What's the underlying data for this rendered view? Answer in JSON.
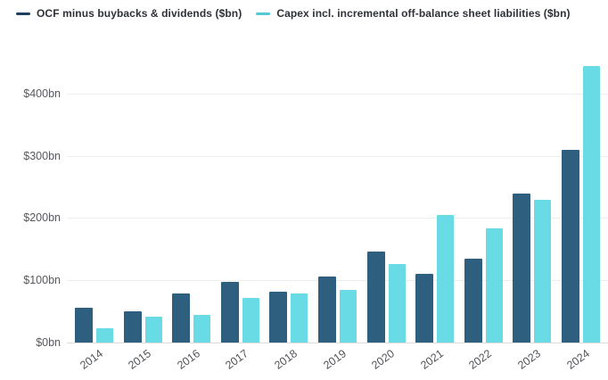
{
  "chart_data": {
    "type": "bar",
    "title": "",
    "xlabel": "",
    "ylabel": "",
    "grid": true,
    "legend_position": "top-left",
    "ylim": [
      0,
      450
    ],
    "categories": [
      "2014",
      "2015",
      "2016",
      "2017",
      "2018",
      "2019",
      "2020",
      "2021",
      "2022",
      "2023",
      "2024"
    ],
    "series": [
      {
        "name": "OCF minus buybacks & dividends ($bn)",
        "color": "#2f5f7f",
        "legend_color": "#1c3f63",
        "values": [
          56,
          50,
          79,
          98,
          81,
          106,
          146,
          110,
          135,
          239,
          310
        ]
      },
      {
        "name": "Capex incl. incremental off-balance sheet liabilities ($bn)",
        "color": "#69dbe5",
        "legend_color": "#4fc9d6",
        "values": [
          23,
          42,
          44,
          71,
          79,
          85,
          126,
          205,
          184,
          230,
          444
        ]
      }
    ],
    "yticks": [
      {
        "value": 0,
        "label": "$0bn"
      },
      {
        "value": 100,
        "label": "$100bn"
      },
      {
        "value": 200,
        "label": "$200bn"
      },
      {
        "value": 300,
        "label": "$300bn"
      },
      {
        "value": 400,
        "label": "$400bn"
      }
    ]
  }
}
